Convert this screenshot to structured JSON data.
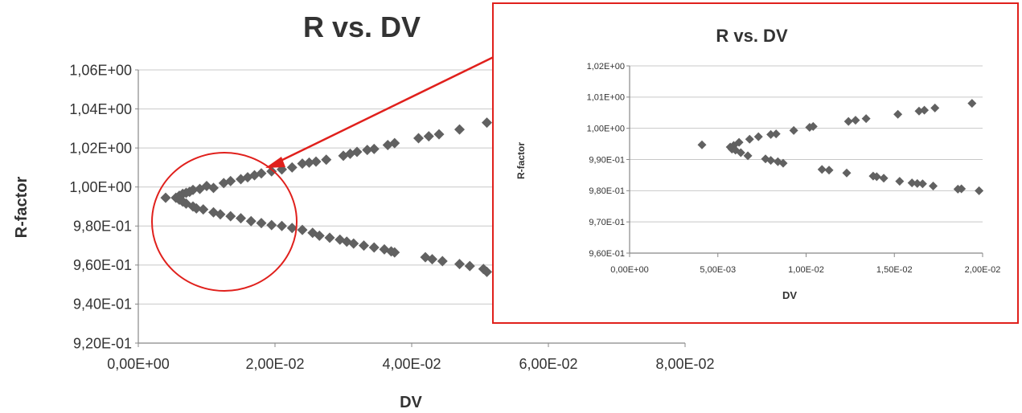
{
  "colors": {
    "marker": "#616161",
    "grid": "#c8c8c8",
    "axis": "#888888",
    "highlight": "#e0201c",
    "text": "#333333"
  },
  "chart_data": [
    {
      "id": "main",
      "type": "scatter",
      "title": "R vs. DV",
      "xlabel": "DV",
      "ylabel": "R-factor",
      "xlim": [
        0,
        0.08
      ],
      "ylim": [
        0.92,
        1.06
      ],
      "x_ticks": [
        0,
        0.02,
        0.04,
        0.06,
        0.08
      ],
      "x_tick_labels": [
        "0,00E+00",
        "2,00E-02",
        "4,00E-02",
        "6,00E-02",
        "8,00E-02"
      ],
      "y_ticks": [
        0.92,
        0.94,
        0.96,
        0.98,
        1.0,
        1.02,
        1.04,
        1.06
      ],
      "y_tick_labels": [
        "9,20E-01",
        "9,40E-01",
        "9,60E-01",
        "9,80E-01",
        "1,00E+00",
        "1,02E+00",
        "1,04E+00",
        "1,06E+00"
      ],
      "grid": "horizontal",
      "legend": "none",
      "series": [
        {
          "x": [
            0.004,
            0.0055,
            0.006,
            0.0065,
            0.007,
            0.0075,
            0.008,
            0.009,
            0.01,
            0.011,
            0.0125,
            0.0135,
            0.015,
            0.016,
            0.017,
            0.018,
            0.0195,
            0.021,
            0.0225,
            0.024,
            0.025,
            0.026,
            0.0275,
            0.03,
            0.031,
            0.032,
            0.0335,
            0.0345,
            0.0365,
            0.0375,
            0.041,
            0.0425,
            0.044,
            0.047,
            0.051,
            0.055,
            0.059,
            0.006,
            0.0065,
            0.007,
            0.008,
            0.0085,
            0.0095,
            0.011,
            0.012,
            0.0135,
            0.015,
            0.0165,
            0.018,
            0.0195,
            0.021,
            0.0225,
            0.024,
            0.0255,
            0.0265,
            0.028,
            0.0295,
            0.0305,
            0.0315,
            0.033,
            0.0345,
            0.036,
            0.037,
            0.0375,
            0.042,
            0.043,
            0.0445,
            0.047,
            0.0485,
            0.0505,
            0.051,
            0.054,
            0.057
          ],
          "y": [
            0.9945,
            0.9945,
            0.9955,
            0.9965,
            0.997,
            0.9975,
            0.9985,
            0.999,
            1.0005,
            0.9995,
            1.002,
            1.003,
            1.004,
            1.005,
            1.006,
            1.007,
            1.008,
            1.009,
            1.01,
            1.012,
            1.0125,
            1.013,
            1.014,
            1.016,
            1.017,
            1.018,
            1.019,
            1.0195,
            1.0215,
            1.0225,
            1.025,
            1.026,
            1.027,
            1.0295,
            1.033,
            1.0365,
            1.0395,
            0.9935,
            0.9925,
            0.9915,
            0.99,
            0.989,
            0.9885,
            0.987,
            0.986,
            0.985,
            0.984,
            0.9825,
            0.9815,
            0.9805,
            0.98,
            0.979,
            0.978,
            0.9765,
            0.975,
            0.974,
            0.973,
            0.972,
            0.971,
            0.97,
            0.969,
            0.968,
            0.967,
            0.9665,
            0.964,
            0.963,
            0.962,
            0.9605,
            0.9595,
            0.958,
            0.9565,
            0.955,
            0.954
          ]
        }
      ]
    },
    {
      "id": "inset",
      "type": "scatter",
      "title": "R vs. DV",
      "xlabel": "DV",
      "ylabel": "R-factor",
      "xlim": [
        0,
        0.02
      ],
      "ylim": [
        0.96,
        1.02
      ],
      "x_ticks": [
        0,
        0.005,
        0.01,
        0.015,
        0.02
      ],
      "x_tick_labels": [
        "0,00E+00",
        "5,00E-03",
        "1,00E-02",
        "1,50E-02",
        "2,00E-02"
      ],
      "y_ticks": [
        0.96,
        0.97,
        0.98,
        0.99,
        1.0,
        1.01,
        1.02
      ],
      "y_tick_labels": [
        "9,60E-01",
        "9,70E-01",
        "9,80E-01",
        "9,90E-01",
        "1,00E+00",
        "1,01E+00",
        "1,02E+00"
      ],
      "grid": "horizontal",
      "legend": "none",
      "series": [
        {
          "x": [
            0.0041,
            0.0057,
            0.0059,
            0.0062,
            0.0068,
            0.0073,
            0.008,
            0.0083,
            0.0093,
            0.0102,
            0.0104,
            0.0124,
            0.0128,
            0.0134,
            0.0152,
            0.0164,
            0.0167,
            0.0173,
            0.0194,
            0.0058,
            0.006,
            0.0063,
            0.0067,
            0.0077,
            0.008,
            0.0084,
            0.0087,
            0.0109,
            0.0113,
            0.0123,
            0.0138,
            0.014,
            0.0144,
            0.0153,
            0.016,
            0.0163,
            0.0166,
            0.0172,
            0.0186,
            0.0188,
            0.0198
          ],
          "y": [
            0.9947,
            0.994,
            0.9945,
            0.9955,
            0.9965,
            0.9973,
            0.998,
            0.9982,
            0.9993,
            1.0003,
            1.0006,
            1.0022,
            1.0026,
            1.0031,
            1.0045,
            1.0055,
            1.0058,
            1.0065,
            1.008,
            0.9933,
            0.993,
            0.9922,
            0.9912,
            0.9902,
            0.9897,
            0.9893,
            0.9888,
            0.9868,
            0.9866,
            0.9857,
            0.9847,
            0.9845,
            0.984,
            0.983,
            0.9825,
            0.9823,
            0.9822,
            0.9815,
            0.9805,
            0.9806,
            0.98
          ]
        }
      ]
    }
  ]
}
